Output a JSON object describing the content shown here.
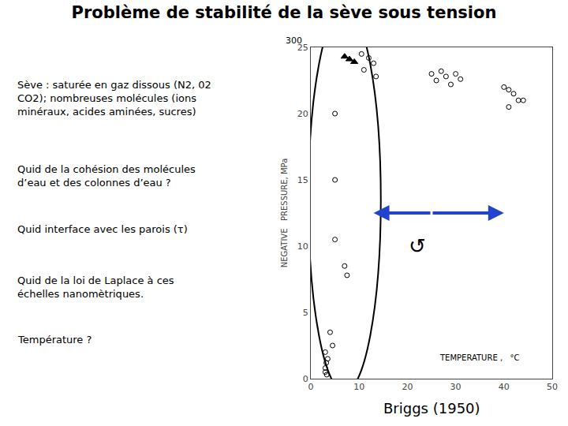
{
  "chart_data": {
    "type": "scatter",
    "title": "Problème de stabilité de la sève sous tension",
    "text_blocks": [
      "Sève : saturée en gaz dissous (N2, 02\nCO2); nombreuses molécules (ions\nminéraux, acides aminées, sucres)",
      "Quid de la cohésion des molécules\nd’eau et des colonnes d’eau ?",
      "Quid interface avec les parois (τ)",
      "Quid de la loi de Laplace à ces\néchelles nanomètriques.",
      "Température ?"
    ],
    "source": "Briggs (1950)",
    "ylabel": "NEGATIVE   PRESSURE, MPa",
    "axis_note": "TEMPERATURE ,   °C",
    "top_label": "300",
    "symbol": "↺",
    "xlim": [
      0,
      50
    ],
    "ylim": [
      0,
      25
    ],
    "xticks": [
      0,
      10,
      20,
      30,
      40,
      50
    ],
    "yticks": [
      0,
      5,
      10,
      15,
      20,
      25
    ],
    "grid": false,
    "series": [
      {
        "marker": "circle-open",
        "color": "#000000",
        "x": [
          10.5,
          12,
          13,
          11,
          13.5,
          5,
          5,
          5,
          7,
          7.5,
          4,
          4.5,
          3,
          3.5,
          3.2,
          3,
          3,
          3.3,
          25,
          26,
          27,
          28,
          30,
          29,
          31,
          40,
          41,
          42,
          43,
          44,
          41
        ],
        "values": [
          24.5,
          24.2,
          23.8,
          23.3,
          22.8,
          20.0,
          15.0,
          10.5,
          8.5,
          7.8,
          3.5,
          2.5,
          2.0,
          1.5,
          1.2,
          0.8,
          0.5,
          0.3,
          23.0,
          22.5,
          23.2,
          22.8,
          23.0,
          22.2,
          22.6,
          22.0,
          21.8,
          21.5,
          21.0,
          21.0,
          20.5
        ]
      },
      {
        "marker": "triangle-up",
        "color": "#000000",
        "x": [
          7,
          8,
          9
        ],
        "values": [
          24.3,
          24.1,
          23.9
        ]
      }
    ],
    "ellipse": {
      "cx": 7.0,
      "cy": 13.5,
      "rx": 7.5,
      "ry": 14.5,
      "color": "#000000"
    },
    "arrow": {
      "x_mid": 25,
      "y": 12.5,
      "x_left": 13,
      "x_right": 40,
      "color": "#2244cc"
    }
  }
}
